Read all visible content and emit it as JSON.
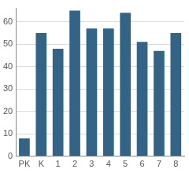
{
  "chart_data": {
    "type": "bar",
    "categories": [
      "PK",
      "K",
      "1",
      "2",
      "3",
      "4",
      "5",
      "6",
      "7",
      "8"
    ],
    "values": [
      8,
      55,
      48,
      65,
      57,
      57,
      64,
      51,
      47,
      55
    ],
    "color": "#336485",
    "ylim": [
      0,
      66
    ],
    "yticks": [
      0,
      10,
      20,
      30,
      40,
      50,
      60
    ],
    "grid": true
  }
}
